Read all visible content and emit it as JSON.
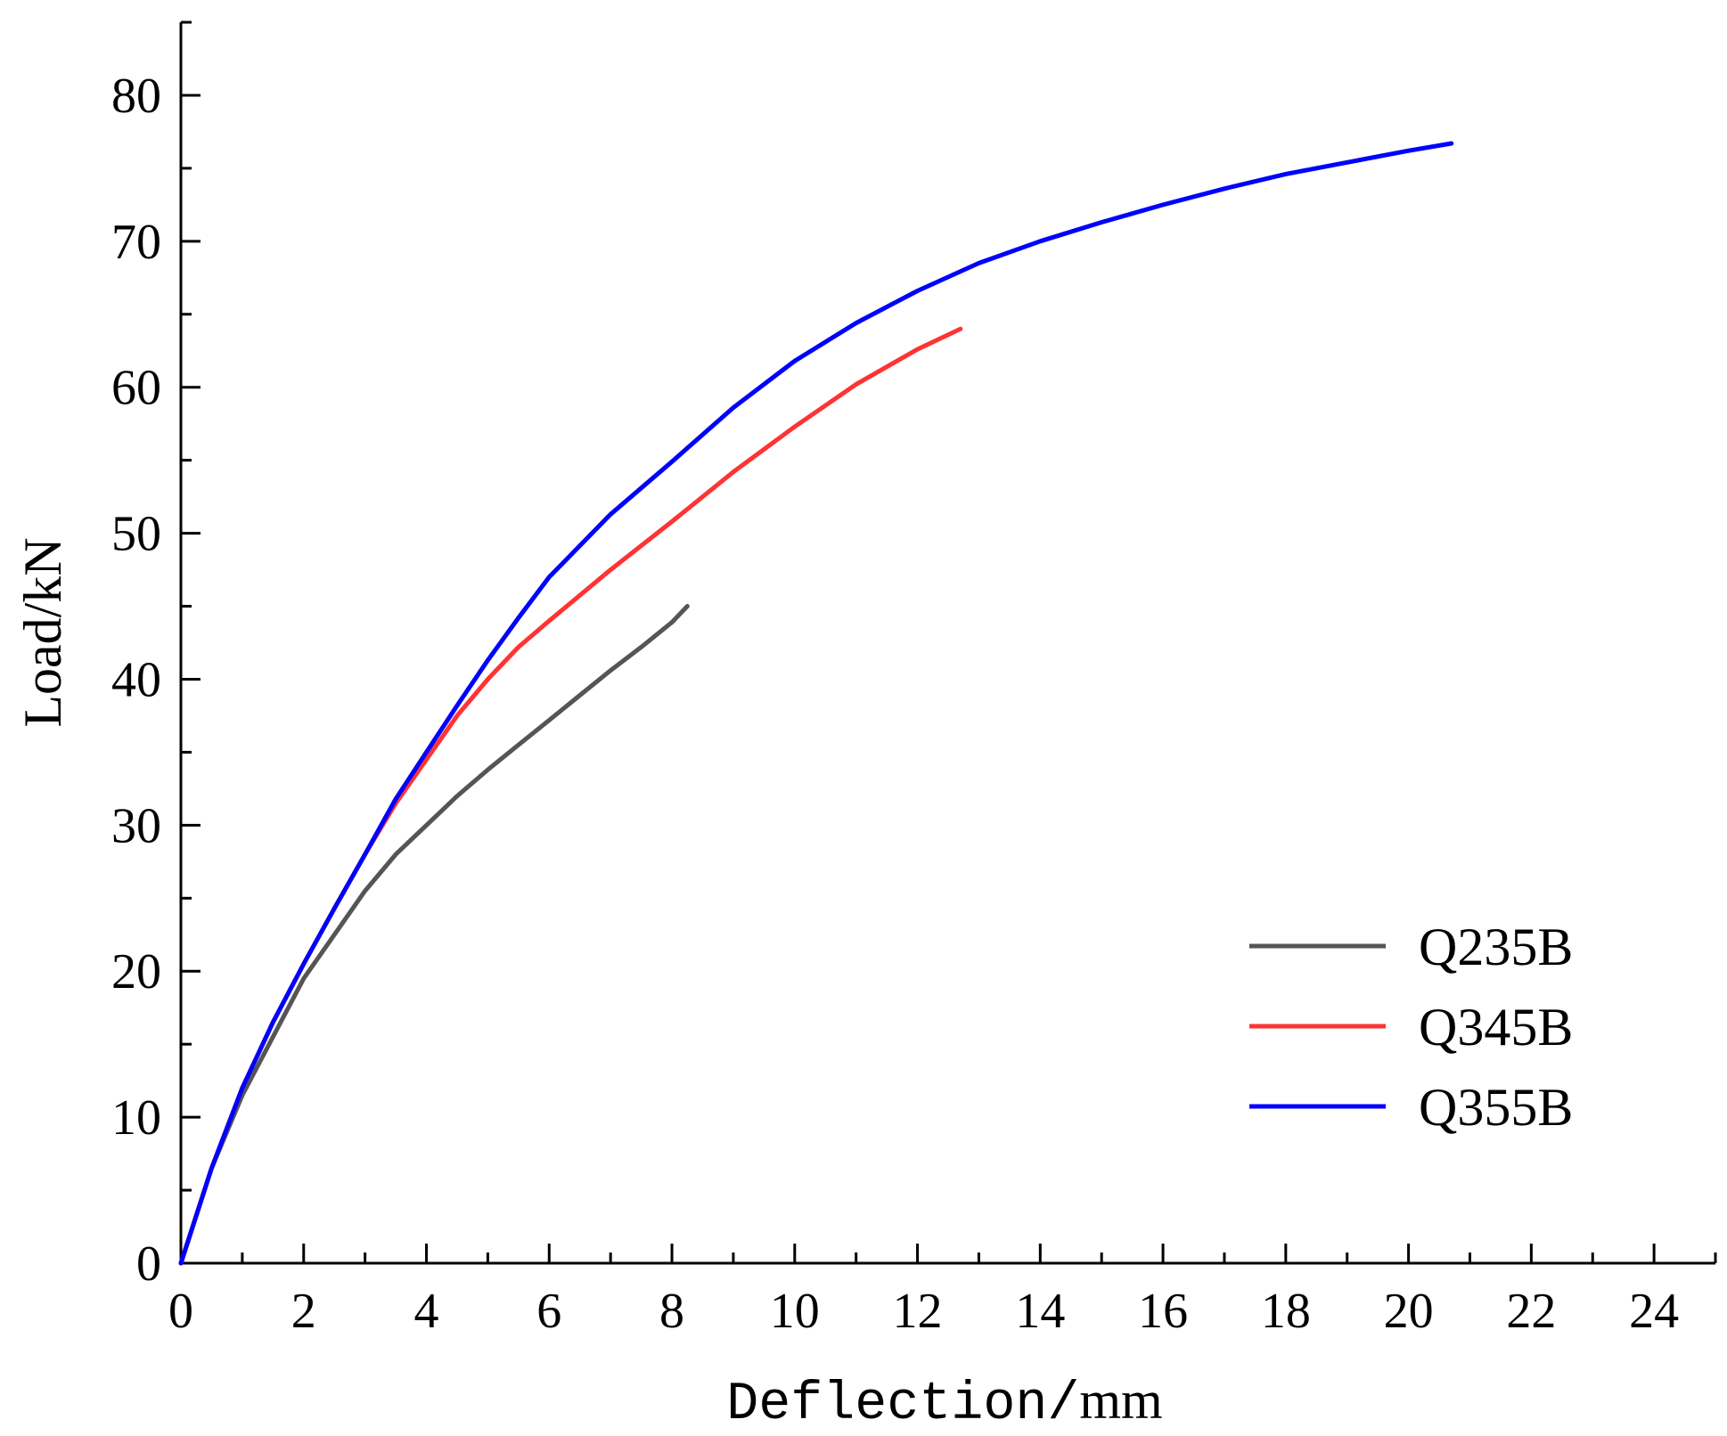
{
  "chart_data": {
    "type": "line",
    "title": "",
    "xlabel_prefix": "Deflection/",
    "xlabel_unit": "mm",
    "ylabel": "Load/kN",
    "xlim": [
      0,
      25
    ],
    "ylim": [
      0,
      85
    ],
    "xticks": [
      0,
      2,
      4,
      6,
      8,
      10,
      12,
      14,
      16,
      18,
      20,
      22,
      24
    ],
    "yticks": [
      0,
      10,
      20,
      30,
      40,
      50,
      60,
      70,
      80
    ],
    "legend_position": "bottom-right",
    "series": [
      {
        "name": "Q235B",
        "color": "#555555",
        "x": [
          0,
          0.5,
          1.0,
          1.5,
          2.0,
          2.5,
          3.0,
          3.5,
          4.0,
          4.5,
          5.0,
          5.5,
          6.0,
          6.5,
          7.0,
          7.5,
          8.0,
          8.25
        ],
        "y": [
          0,
          6.5,
          11.5,
          15.5,
          19.5,
          22.5,
          25.5,
          28.0,
          30.0,
          32.0,
          33.8,
          35.5,
          37.2,
          38.9,
          40.6,
          42.2,
          43.9,
          45.0
        ]
      },
      {
        "name": "Q345B",
        "color": "#ff3333",
        "x": [
          0,
          0.5,
          1.0,
          1.5,
          2.0,
          2.5,
          3.0,
          3.5,
          4.0,
          4.5,
          5.0,
          5.5,
          6.0,
          7.0,
          8.0,
          9.0,
          10.0,
          11.0,
          12.0,
          12.7
        ],
        "y": [
          0,
          6.5,
          12.0,
          16.5,
          20.5,
          24.3,
          28.0,
          31.5,
          34.5,
          37.5,
          40.0,
          42.2,
          44.0,
          47.5,
          50.8,
          54.2,
          57.3,
          60.2,
          62.6,
          64.0
        ]
      },
      {
        "name": "Q355B",
        "color": "#0000ff",
        "x": [
          0,
          0.5,
          1.0,
          1.5,
          2.0,
          2.5,
          3.0,
          3.5,
          4.0,
          4.5,
          5.0,
          5.5,
          6.0,
          7.0,
          8.0,
          9.0,
          10.0,
          11.0,
          12.0,
          13.0,
          14.0,
          15.0,
          16.0,
          17.0,
          18.0,
          19.0,
          20.0,
          20.7
        ],
        "y": [
          0,
          6.5,
          12.0,
          16.5,
          20.5,
          24.3,
          28.0,
          31.8,
          35.0,
          38.2,
          41.3,
          44.2,
          47.0,
          51.3,
          54.9,
          58.6,
          61.8,
          64.4,
          66.6,
          68.5,
          70.0,
          71.3,
          72.5,
          73.6,
          74.6,
          75.4,
          76.2,
          76.7
        ]
      }
    ]
  }
}
